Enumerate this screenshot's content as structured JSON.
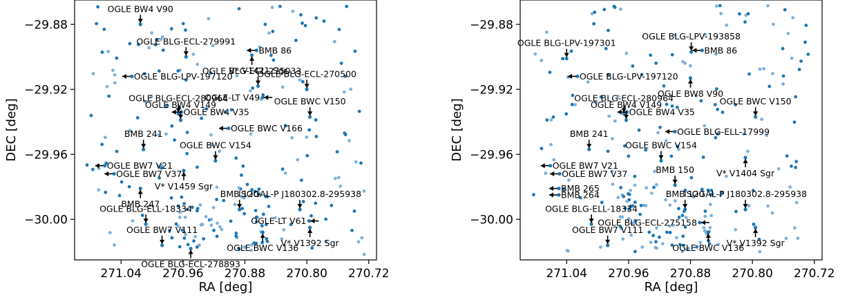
{
  "chart_data": [
    {
      "type": "scatter",
      "xlabel": "RA [deg]",
      "ylabel": "DEC [deg]",
      "xlim": [
        271.1,
        270.71
      ],
      "ylim": [
        -30.025,
        -29.865
      ],
      "xticks": [
        271.04,
        270.96,
        270.88,
        270.8,
        270.72
      ],
      "xtick_labels": [
        "271.04",
        "270.96",
        "270.88",
        "270.80",
        "270.72"
      ],
      "yticks": [
        -29.88,
        -29.92,
        -29.96,
        -30.0
      ],
      "ytick_labels": [
        "−29.88",
        "−29.92",
        "−29.96",
        "−30.00"
      ],
      "colors": {
        "dark": "#1f77b4",
        "light": "#7fb2dc",
        "arrow": "#000000"
      },
      "annotations": [
        {
          "label": "OGLE BW4 V90",
          "x": 271.015,
          "y": -29.88,
          "dir": "down"
        },
        {
          "label": "OGLE BLG-ECL-279991",
          "x": 270.956,
          "y": -29.9,
          "dir": "down"
        },
        {
          "label": "BMB  86",
          "x": 270.865,
          "y": -29.896,
          "dir": "right"
        },
        {
          "label": "OGLE BLG-ECL-275033",
          "x": 270.871,
          "y": -29.899,
          "dir": "up"
        },
        {
          "label": "OGLE BLG-LPV-197120",
          "x": 271.026,
          "y": -29.912,
          "dir": "right"
        },
        {
          "label": "V* V1421 Sgr",
          "x": 270.863,
          "y": -29.918,
          "dir": "down"
        },
        {
          "label": "OGLE-LT V49",
          "x": 270.857,
          "y": -29.925,
          "dir": "left"
        },
        {
          "label": "OGLE BLG-ECL-270500",
          "x": 270.8,
          "y": -29.92,
          "dir": "down"
        },
        {
          "label": "OGLE BLG-ECL-280964",
          "x": 270.966,
          "y": -29.935,
          "dir": "down"
        },
        {
          "label": "OGLE BW4 V35",
          "x": 270.962,
          "y": -29.934,
          "dir": "right"
        },
        {
          "label": "OGLE BWC V150",
          "x": 270.796,
          "y": -29.937,
          "dir": "down"
        },
        {
          "label": "OGLE BW4 V149",
          "x": 270.963,
          "y": -29.939,
          "dir": "down"
        },
        {
          "label": "OGLE BWC V166",
          "x": 270.901,
          "y": -29.944,
          "dir": "right"
        },
        {
          "label": "BMB 241",
          "x": 271.011,
          "y": -29.957,
          "dir": "down"
        },
        {
          "label": "OGLE BWC V154",
          "x": 270.918,
          "y": -29.964,
          "dir": "down"
        },
        {
          "label": "OGLE BW7 V21",
          "x": 271.061,
          "y": -29.967,
          "dir": "right"
        },
        {
          "label": "OGLE BW7 V37",
          "x": 271.049,
          "y": -29.972,
          "dir": "right"
        },
        {
          "label": "V* V1459 Sgr",
          "x": 270.959,
          "y": -29.97,
          "dir": "up"
        },
        {
          "label": "BMB 247",
          "x": 271.015,
          "y": -29.981,
          "dir": "up"
        },
        {
          "label": "BMB 120",
          "x": 270.887,
          "y": -29.994,
          "dir": "down"
        },
        {
          "label": "ISOGAL-P J180302.8-295938",
          "x": 270.809,
          "y": -29.994,
          "dir": "down"
        },
        {
          "label": "OGLE BLG-ELL-18334",
          "x": 271.008,
          "y": -30.003,
          "dir": "down"
        },
        {
          "label": "OGLE-LT V61",
          "x": 270.797,
          "y": -30.001,
          "dir": "left"
        },
        {
          "label": "V* V1392 Sgr",
          "x": 270.796,
          "y": -30.005,
          "dir": "up"
        },
        {
          "label": "OGLE BW7 V111",
          "x": 270.987,
          "y": -30.016,
          "dir": "down"
        },
        {
          "label": "OGLE BWC V136",
          "x": 270.857,
          "y": -30.008,
          "dir": "up"
        },
        {
          "label": "OGLE BLG-ECL-278893",
          "x": 270.95,
          "y": -30.018,
          "dir": "up"
        }
      ]
    },
    {
      "type": "scatter",
      "xlabel": "RA [deg]",
      "ylabel": "DEC [deg]",
      "xlim": [
        271.1,
        270.71
      ],
      "ylim": [
        -30.025,
        -29.865
      ],
      "xticks": [
        271.04,
        270.96,
        270.88,
        270.8,
        270.72
      ],
      "xtick_labels": [
        "271.04",
        "270.96",
        "270.88",
        "270.80",
        "270.72"
      ],
      "yticks": [
        -29.88,
        -29.92,
        -29.96,
        -30.0
      ],
      "ytick_labels": [
        "−29.88",
        "−29.92",
        "−29.96",
        "−30.00"
      ],
      "colors": {
        "dark": "#1f77b4",
        "light": "#7fb2dc",
        "arrow": "#000000"
      },
      "annotations": [
        {
          "label": "OGLE BLG-LPV-197301",
          "x": 271.04,
          "y": -29.901,
          "dir": "down"
        },
        {
          "label": "OGLE BLG-LPV-193858",
          "x": 270.879,
          "y": -29.897,
          "dir": "down"
        },
        {
          "label": "BMB  86",
          "x": 270.865,
          "y": -29.896,
          "dir": "right"
        },
        {
          "label": "OGLE BLG-LPV-197120",
          "x": 271.026,
          "y": -29.912,
          "dir": "right"
        },
        {
          "label": "OGLE BW8 V90",
          "x": 270.88,
          "y": -29.913,
          "dir": "up"
        },
        {
          "label": "OGLE BLG-ECL-280964",
          "x": 270.966,
          "y": -29.935,
          "dir": "down"
        },
        {
          "label": "OGLE BW4 V35",
          "x": 270.962,
          "y": -29.934,
          "dir": "right"
        },
        {
          "label": "OGLE BWC V150",
          "x": 270.796,
          "y": -29.937,
          "dir": "down"
        },
        {
          "label": "OGLE BW4 V149",
          "x": 270.963,
          "y": -29.939,
          "dir": "down"
        },
        {
          "label": "OGLE BLG-ELL-17999",
          "x": 270.9,
          "y": -29.946,
          "dir": "right"
        },
        {
          "label": "BMB 241",
          "x": 271.011,
          "y": -29.957,
          "dir": "down"
        },
        {
          "label": "OGLE BWC V154",
          "x": 270.918,
          "y": -29.964,
          "dir": "down"
        },
        {
          "label": "OGLE BW7 V21",
          "x": 271.061,
          "y": -29.967,
          "dir": "right"
        },
        {
          "label": "V* V1404 Sgr",
          "x": 270.809,
          "y": -29.962,
          "dir": "up"
        },
        {
          "label": "OGLE BW7 V37",
          "x": 271.049,
          "y": -29.972,
          "dir": "right"
        },
        {
          "label": "BMB 150",
          "x": 270.9,
          "y": -29.979,
          "dir": "down"
        },
        {
          "label": "BMB 265",
          "x": 271.05,
          "y": -29.981,
          "dir": "right"
        },
        {
          "label": "BMB 264",
          "x": 271.05,
          "y": -29.985,
          "dir": "right"
        },
        {
          "label": "BMB 120",
          "x": 270.887,
          "y": -29.994,
          "dir": "down"
        },
        {
          "label": "ISOGAL-P J180302.8-295938",
          "x": 270.809,
          "y": -29.994,
          "dir": "down"
        },
        {
          "label": "OGLE BLG-ELL-18334",
          "x": 271.008,
          "y": -30.003,
          "dir": "down"
        },
        {
          "label": "OGLE BLG-ECL-275158",
          "x": 270.868,
          "y": -30.002,
          "dir": "left"
        },
        {
          "label": "V* V1392 Sgr",
          "x": 270.796,
          "y": -30.005,
          "dir": "up"
        },
        {
          "label": "OGLE BW7 V111",
          "x": 270.987,
          "y": -30.016,
          "dir": "down"
        },
        {
          "label": "OGLE BWC V136",
          "x": 270.857,
          "y": -30.008,
          "dir": "up"
        }
      ]
    }
  ]
}
